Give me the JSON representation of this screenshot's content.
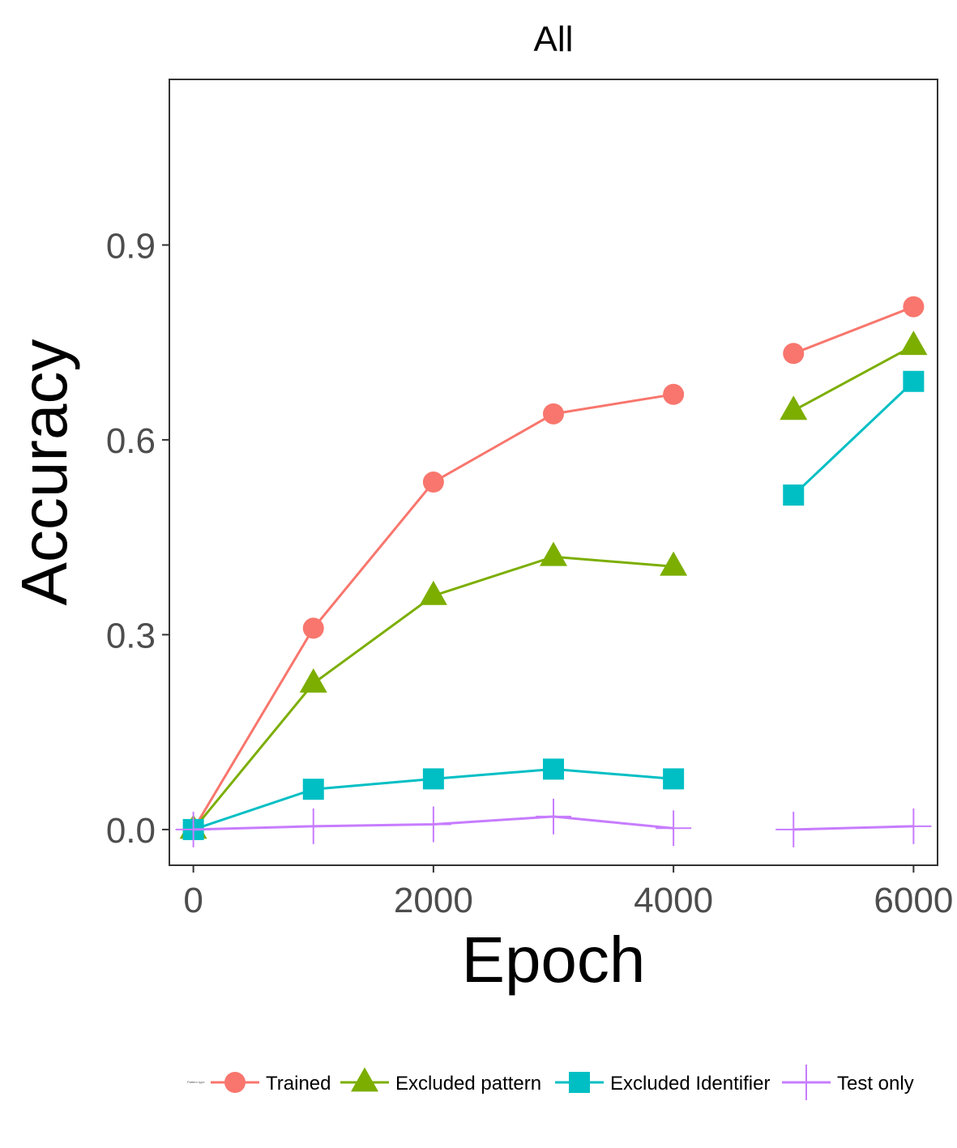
{
  "chart_data": {
    "type": "line",
    "title": "All",
    "xlabel": "Epoch",
    "ylabel": "Accuracy",
    "xlim": [
      -200,
      6200
    ],
    "ylim": [
      -0.055,
      1.155
    ],
    "xticks": [
      0,
      2000,
      4000,
      6000
    ],
    "xtick_labels": [
      "0",
      "2000",
      "4000",
      "6000"
    ],
    "yticks": [
      0.0,
      0.3,
      0.6,
      0.9
    ],
    "ytick_labels": [
      "0.0",
      "0.3",
      "0.6",
      "0.9"
    ],
    "grid": false,
    "legend_position": "bottom",
    "legend_title": "Pattern type",
    "series": [
      {
        "name": "Trained",
        "color": "#F8766D",
        "marker": "circle",
        "segments": [
          [
            [
              0,
              0.0
            ],
            [
              1000,
              0.31
            ],
            [
              2000,
              0.535
            ],
            [
              3000,
              0.64
            ],
            [
              4000,
              0.67
            ]
          ],
          [
            [
              5000,
              0.733
            ],
            [
              6000,
              0.805
            ]
          ]
        ]
      },
      {
        "name": "Excluded pattern",
        "color": "#7CAE00",
        "marker": "triangle",
        "segments": [
          [
            [
              0,
              0.0
            ],
            [
              1000,
              0.225
            ],
            [
              2000,
              0.36
            ],
            [
              3000,
              0.42
            ],
            [
              4000,
              0.405
            ]
          ],
          [
            [
              5000,
              0.645
            ],
            [
              6000,
              0.745
            ]
          ]
        ]
      },
      {
        "name": "Excluded Identifier",
        "color": "#00BFC4",
        "marker": "square",
        "segments": [
          [
            [
              0,
              0.0
            ],
            [
              1000,
              0.062
            ],
            [
              2000,
              0.078
            ],
            [
              3000,
              0.093
            ],
            [
              4000,
              0.078
            ]
          ],
          [
            [
              5000,
              0.515
            ],
            [
              6000,
              0.69
            ]
          ]
        ]
      },
      {
        "name": "Test only",
        "color": "#C77CFF",
        "marker": "plus",
        "segments": [
          [
            [
              0,
              0.0
            ],
            [
              1000,
              0.005
            ],
            [
              2000,
              0.008
            ],
            [
              3000,
              0.02
            ],
            [
              4000,
              0.002
            ]
          ],
          [
            [
              5000,
              0.0
            ],
            [
              6000,
              0.005
            ]
          ]
        ]
      }
    ]
  }
}
